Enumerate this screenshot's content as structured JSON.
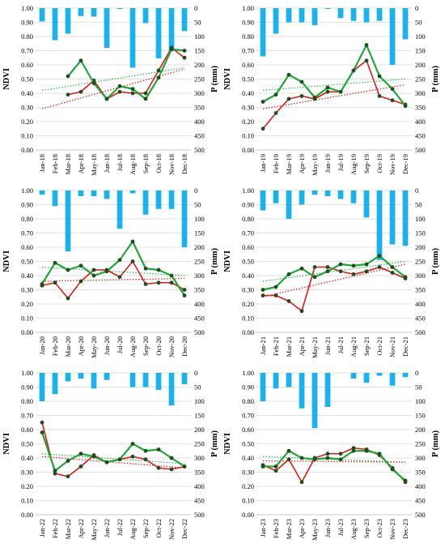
{
  "colors": {
    "precip_bar": "#19b2ea",
    "ndvi_green": "#1fa83a",
    "ndvi_red": "#e01818",
    "trend_green": "#2bb64a",
    "trend_red": "#e01818",
    "grid": "#d9d9d9",
    "marker": "#1f4d1f"
  },
  "chart_data": [
    {
      "type": "bar+line",
      "title": "",
      "ylabel": "NDVI",
      "y2label": "P (mm)",
      "ylim": [
        0,
        1
      ],
      "y2lim": [
        0,
        500
      ],
      "y_ticks": [
        "0.00",
        "0.10",
        "0.20",
        "0.30",
        "0.40",
        "0.50",
        "0.60",
        "0.70",
        "0.80",
        "0.90",
        "1.00"
      ],
      "y2_ticks": [
        "0",
        "50",
        "100",
        "150",
        "200",
        "250",
        "300",
        "350",
        "400",
        "450",
        "500"
      ],
      "categories": [
        "Jan-18",
        "Feb-18",
        "Mar-18",
        "Apr-18",
        "May-18",
        "Jun-18",
        "Jul-18",
        "Aug-18",
        "Sep-18",
        "Oct-18",
        "Nov-18",
        "Dec-18"
      ],
      "precip_mm": [
        47,
        113,
        90,
        28,
        30,
        140,
        3,
        210,
        53,
        177,
        152,
        81
      ],
      "ndvi_green": [
        null,
        null,
        0.52,
        0.63,
        0.47,
        0.36,
        0.45,
        0.43,
        0.36,
        0.51,
        0.71,
        0.7
      ],
      "ndvi_red": [
        null,
        null,
        0.39,
        0.41,
        0.49,
        0.36,
        0.41,
        0.4,
        0.4,
        0.56,
        0.72,
        0.65
      ],
      "trend_green": [
        0.42,
        0.58
      ],
      "trend_red": [
        0.29,
        0.57
      ]
    },
    {
      "type": "bar+line",
      "title": "",
      "ylabel": "NDVI",
      "y2label": "P (mm)",
      "ylim": [
        0,
        1
      ],
      "y2lim": [
        0,
        500
      ],
      "y_ticks": [
        "0.00",
        "0.10",
        "0.20",
        "0.30",
        "0.40",
        "0.50",
        "0.60",
        "0.70",
        "0.80",
        "0.90",
        "1.00"
      ],
      "y2_ticks": [
        "0",
        "50",
        "100",
        "150",
        "200",
        "250",
        "300",
        "350",
        "400",
        "450",
        "500"
      ],
      "categories": [
        "Jan-19",
        "Feb-19",
        "Mar-19",
        "Apr-19",
        "May-19",
        "Jun-19",
        "Jul-19",
        "Aug-19",
        "Sep-19",
        "Oct-19",
        "Nov-19",
        "Dec-19"
      ],
      "precip_mm": [
        170,
        90,
        50,
        50,
        60,
        3,
        35,
        45,
        50,
        45,
        200,
        110
      ],
      "ndvi_green": [
        0.34,
        0.39,
        0.53,
        0.48,
        0.37,
        0.44,
        0.41,
        0.56,
        0.74,
        0.52,
        0.43,
        0.31
      ],
      "ndvi_red": [
        0.15,
        0.26,
        0.36,
        0.38,
        0.36,
        0.41,
        0.41,
        0.56,
        0.63,
        0.38,
        0.35,
        0.32
      ],
      "trend_green": [
        0.42,
        0.5
      ],
      "trend_red": [
        0.29,
        0.46
      ]
    },
    {
      "type": "bar+line",
      "title": "",
      "ylabel": "NDVI",
      "y2label": "P (mm)",
      "ylim": [
        0,
        1
      ],
      "y2lim": [
        0,
        500
      ],
      "y_ticks": [
        "0.00",
        "0.10",
        "0.20",
        "0.30",
        "0.40",
        "0.50",
        "0.60",
        "0.70",
        "0.80",
        "0.90",
        "1.00"
      ],
      "y2_ticks": [
        "0",
        "50",
        "100",
        "150",
        "200",
        "250",
        "300",
        "350",
        "400",
        "450",
        "500"
      ],
      "categories": [
        "Jan-20",
        "Feb-20",
        "Mar-20",
        "Apr-20",
        "May-20",
        "Jun-20",
        "Jul-20",
        "Aug-20",
        "Sep-20",
        "Oct-20",
        "Nov-20",
        "Dec-20"
      ],
      "precip_mm": [
        15,
        55,
        215,
        20,
        20,
        30,
        135,
        10,
        85,
        65,
        65,
        200
      ],
      "ndvi_green": [
        0.34,
        0.49,
        0.44,
        0.47,
        0.4,
        0.43,
        0.51,
        0.64,
        0.45,
        0.44,
        0.4,
        0.26
      ],
      "ndvi_red": [
        0.33,
        0.35,
        0.24,
        0.36,
        0.44,
        0.44,
        0.39,
        0.5,
        0.34,
        0.35,
        0.35,
        0.3
      ],
      "trend_green": [
        0.46,
        0.4
      ],
      "trend_red": [
        0.36,
        0.38
      ]
    },
    {
      "type": "bar+line",
      "title": "",
      "ylabel": "NDVI",
      "y2label": "P (mm)",
      "ylim": [
        0,
        1
      ],
      "y2lim": [
        0,
        500
      ],
      "y_ticks": [
        "0.00",
        "0.10",
        "0.20",
        "0.30",
        "0.40",
        "0.50",
        "0.60",
        "0.70",
        "0.80",
        "0.90",
        "1.00"
      ],
      "y2_ticks": [
        "0",
        "50",
        "100",
        "150",
        "200",
        "250",
        "300",
        "350",
        "400",
        "450",
        "500"
      ],
      "categories": [
        "Jan-21",
        "Feb-21",
        "Mar-21",
        "Apr-21",
        "May-21",
        "Jun-21",
        "Jul-21",
        "Aug-21",
        "Sep-21",
        "Oct-21",
        "Nov-21",
        "Dec-21"
      ],
      "precip_mm": [
        70,
        45,
        100,
        50,
        15,
        20,
        30,
        45,
        95,
        245,
        190,
        195
      ],
      "ndvi_green": [
        0.3,
        0.32,
        0.41,
        0.45,
        0.39,
        0.43,
        0.48,
        0.47,
        0.48,
        0.54,
        0.46,
        0.39
      ],
      "ndvi_red": [
        0.26,
        0.26,
        0.22,
        0.15,
        0.46,
        0.46,
        0.43,
        0.41,
        0.43,
        0.46,
        0.42,
        0.38
      ],
      "trend_green": [
        0.36,
        0.5
      ],
      "trend_red": [
        0.25,
        0.48
      ]
    },
    {
      "type": "bar+line",
      "title": "",
      "ylabel": "NDVI",
      "y2label": "P (mm)",
      "ylim": [
        0,
        1
      ],
      "y2lim": [
        0,
        500
      ],
      "y_ticks": [
        "0.00",
        "0.10",
        "0.20",
        "0.30",
        "0.40",
        "0.50",
        "0.60",
        "0.70",
        "0.80",
        "0.90",
        "1.00"
      ],
      "y2_ticks": [
        "0",
        "50",
        "100",
        "150",
        "200",
        "250",
        "300",
        "350",
        "400",
        "450",
        "500"
      ],
      "categories": [
        "Jan-22",
        "Feb-22",
        "Mar-22",
        "Apr-22",
        "May-22",
        "Jun-22",
        "Jul-22",
        "Aug-22",
        "Sep-22",
        "Oct-22",
        "Nov-22",
        "Dec-22"
      ],
      "precip_mm": [
        100,
        75,
        30,
        20,
        55,
        25,
        0,
        50,
        50,
        60,
        115,
        40
      ],
      "ndvi_green": [
        0.58,
        0.31,
        0.38,
        0.43,
        0.41,
        0.37,
        0.39,
        0.5,
        0.45,
        0.46,
        0.4,
        0.34
      ],
      "ndvi_red": [
        0.65,
        0.29,
        0.27,
        0.34,
        0.42,
        0.37,
        0.39,
        0.41,
        0.39,
        0.33,
        0.32,
        0.34
      ],
      "trend_green": [
        0.43,
        0.36
      ],
      "trend_red": [
        0.41,
        0.33
      ]
    },
    {
      "type": "bar+line",
      "title": "",
      "ylabel": "NDVI",
      "y2label": "P (mm)",
      "ylim": [
        0,
        1
      ],
      "y2lim": [
        0,
        500
      ],
      "y_ticks": [
        "0.00",
        "0.10",
        "0.20",
        "0.30",
        "0.40",
        "0.50",
        "0.60",
        "0.70",
        "0.80",
        "0.90",
        "1.00"
      ],
      "y2_ticks": [
        "0",
        "50",
        "100",
        "150",
        "200",
        "250",
        "300",
        "350",
        "400",
        "450",
        "500"
      ],
      "categories": [
        "Jan-23",
        "Feb-23",
        "Mar-23",
        "Apr-23",
        "May-23",
        "Jun-23",
        "Jul-23",
        "Aug-23",
        "Sep-23",
        "Oct-23",
        "Nov-23",
        "Dec-23"
      ],
      "precip_mm": [
        100,
        55,
        50,
        125,
        195,
        120,
        0,
        20,
        35,
        10,
        45,
        15
      ],
      "ndvi_green": [
        0.34,
        0.34,
        0.45,
        0.4,
        0.39,
        0.4,
        0.39,
        0.45,
        0.45,
        0.43,
        0.32,
        0.24
      ],
      "ndvi_red": [
        0.35,
        0.31,
        0.39,
        0.23,
        0.4,
        0.43,
        0.43,
        0.47,
        0.46,
        0.42,
        0.33,
        0.23
      ],
      "trend_green": [
        0.41,
        0.37
      ],
      "trend_red": [
        0.38,
        0.37
      ]
    }
  ]
}
